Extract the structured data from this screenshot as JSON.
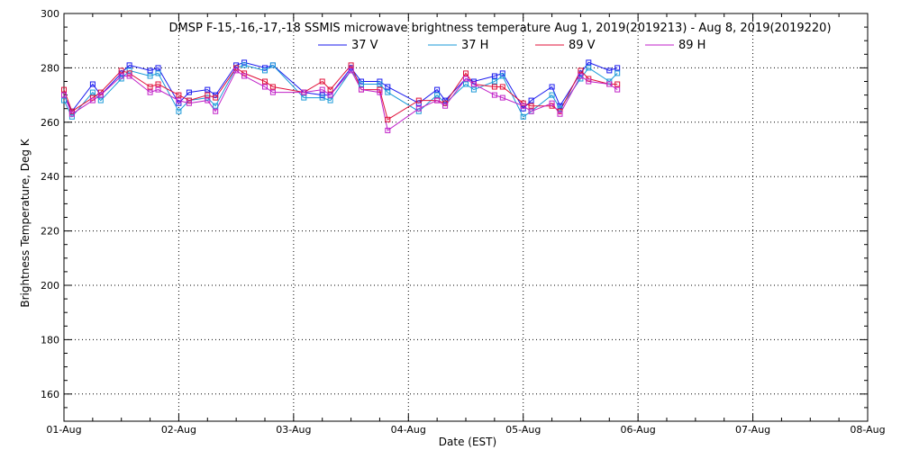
{
  "chart_data": {
    "type": "line",
    "title": "DMSP F-15,-16,-17,-18 SSMIS microwave brightness temperature Aug  1, 2019(2019213) - Aug  8, 2019(2019220)",
    "xlabel": "Date (EST)",
    "ylabel": "Brightness Temperature, Deg K",
    "xlim": [
      0,
      7
    ],
    "ylim": [
      150,
      300
    ],
    "x_ticks": [
      {
        "value": 0,
        "label": "01-Aug"
      },
      {
        "value": 1,
        "label": "02-Aug"
      },
      {
        "value": 2,
        "label": "03-Aug"
      },
      {
        "value": 3,
        "label": "04-Aug"
      },
      {
        "value": 4,
        "label": "05-Aug"
      },
      {
        "value": 5,
        "label": "06-Aug"
      },
      {
        "value": 6,
        "label": "07-Aug"
      },
      {
        "value": 7,
        "label": "08-Aug"
      }
    ],
    "y_ticks": [
      {
        "value": 160,
        "label": "160"
      },
      {
        "value": 180,
        "label": "180"
      },
      {
        "value": 200,
        "label": "200"
      },
      {
        "value": 220,
        "label": "220"
      },
      {
        "value": 240,
        "label": "240"
      },
      {
        "value": 260,
        "label": "260"
      },
      {
        "value": 280,
        "label": "280"
      },
      {
        "value": 300,
        "label": "300"
      }
    ],
    "grid": true,
    "legend_position": "top-center",
    "series": [
      {
        "name": "37 V",
        "color": "#1a1aee",
        "points": [
          [
            0.0,
            270
          ],
          [
            0.07,
            264
          ],
          [
            0.25,
            274
          ],
          [
            0.32,
            270
          ],
          [
            0.5,
            278
          ],
          [
            0.57,
            281
          ],
          [
            0.75,
            279
          ],
          [
            0.82,
            280
          ],
          [
            1.0,
            267
          ],
          [
            1.09,
            271
          ],
          [
            1.25,
            272
          ],
          [
            1.32,
            270
          ],
          [
            1.5,
            281
          ],
          [
            1.57,
            282
          ],
          [
            1.75,
            280
          ],
          [
            1.82,
            281
          ],
          [
            2.09,
            271
          ],
          [
            2.25,
            270
          ],
          [
            2.32,
            270
          ],
          [
            2.5,
            280
          ],
          [
            2.59,
            275
          ],
          [
            2.75,
            275
          ],
          [
            2.82,
            273
          ],
          [
            3.09,
            267
          ],
          [
            3.25,
            272
          ],
          [
            3.32,
            268
          ],
          [
            3.5,
            276
          ],
          [
            3.57,
            275
          ],
          [
            3.75,
            277
          ],
          [
            3.82,
            278
          ],
          [
            4.0,
            265
          ],
          [
            4.07,
            268
          ],
          [
            4.25,
            273
          ],
          [
            4.32,
            266
          ],
          [
            4.5,
            278
          ],
          [
            4.57,
            282
          ],
          [
            4.75,
            279
          ],
          [
            4.82,
            280
          ]
        ]
      },
      {
        "name": "37 H",
        "color": "#1a9ad8",
        "points": [
          [
            0.0,
            268
          ],
          [
            0.07,
            262
          ],
          [
            0.25,
            271
          ],
          [
            0.32,
            268
          ],
          [
            0.5,
            276
          ],
          [
            0.57,
            279
          ],
          [
            0.75,
            277
          ],
          [
            0.82,
            278
          ],
          [
            1.0,
            264
          ],
          [
            1.09,
            268
          ],
          [
            1.25,
            269
          ],
          [
            1.32,
            266
          ],
          [
            1.5,
            280
          ],
          [
            1.57,
            281
          ],
          [
            1.75,
            279
          ],
          [
            1.82,
            281
          ],
          [
            2.09,
            269
          ],
          [
            2.25,
            269
          ],
          [
            2.32,
            268
          ],
          [
            2.5,
            279
          ],
          [
            2.59,
            274
          ],
          [
            2.75,
            274
          ],
          [
            2.82,
            271
          ],
          [
            3.09,
            264
          ],
          [
            3.25,
            270
          ],
          [
            3.32,
            267
          ],
          [
            3.5,
            274
          ],
          [
            3.57,
            272
          ],
          [
            3.75,
            275
          ],
          [
            3.82,
            277
          ],
          [
            4.0,
            262
          ],
          [
            4.07,
            264
          ],
          [
            4.25,
            270
          ],
          [
            4.32,
            265
          ],
          [
            4.5,
            276
          ],
          [
            4.57,
            280
          ],
          [
            4.75,
            275
          ],
          [
            4.82,
            278
          ]
        ]
      },
      {
        "name": "89 V",
        "color": "#e0103a",
        "points": [
          [
            0.0,
            272
          ],
          [
            0.07,
            264
          ],
          [
            0.25,
            269
          ],
          [
            0.32,
            271
          ],
          [
            0.5,
            279
          ],
          [
            0.57,
            278
          ],
          [
            0.75,
            273
          ],
          [
            0.82,
            274
          ],
          [
            1.0,
            270
          ],
          [
            1.09,
            268
          ],
          [
            1.25,
            270
          ],
          [
            1.32,
            269
          ],
          [
            1.5,
            280
          ],
          [
            1.57,
            278
          ],
          [
            1.75,
            275
          ],
          [
            1.82,
            273
          ],
          [
            2.09,
            271
          ],
          [
            2.25,
            275
          ],
          [
            2.32,
            272
          ],
          [
            2.5,
            281
          ],
          [
            2.59,
            272
          ],
          [
            2.75,
            272
          ],
          [
            2.82,
            261
          ],
          [
            3.09,
            268
          ],
          [
            3.25,
            268
          ],
          [
            3.32,
            267
          ],
          [
            3.5,
            278
          ],
          [
            3.57,
            274
          ],
          [
            3.75,
            273
          ],
          [
            3.82,
            273
          ],
          [
            4.0,
            267
          ],
          [
            4.07,
            266
          ],
          [
            4.25,
            266
          ],
          [
            4.32,
            264
          ],
          [
            4.5,
            279
          ],
          [
            4.57,
            276
          ],
          [
            4.75,
            274
          ],
          [
            4.82,
            274
          ]
        ]
      },
      {
        "name": "89 H",
        "color": "#c020c8",
        "points": [
          [
            0.0,
            270
          ],
          [
            0.07,
            263
          ],
          [
            0.25,
            268
          ],
          [
            0.32,
            270
          ],
          [
            0.5,
            277
          ],
          [
            0.57,
            277
          ],
          [
            0.75,
            271
          ],
          [
            0.82,
            272
          ],
          [
            1.0,
            268
          ],
          [
            1.09,
            267
          ],
          [
            1.25,
            268
          ],
          [
            1.32,
            264
          ],
          [
            1.5,
            279
          ],
          [
            1.57,
            277
          ],
          [
            1.75,
            273
          ],
          [
            1.82,
            271
          ],
          [
            2.09,
            271
          ],
          [
            2.25,
            272
          ],
          [
            2.32,
            270
          ],
          [
            2.5,
            279
          ],
          [
            2.59,
            272
          ],
          [
            2.75,
            271
          ],
          [
            2.82,
            257
          ],
          [
            3.09,
            265
          ],
          [
            3.25,
            268
          ],
          [
            3.32,
            266
          ],
          [
            3.5,
            276
          ],
          [
            3.57,
            274
          ],
          [
            3.75,
            270
          ],
          [
            3.82,
            269
          ],
          [
            4.0,
            266
          ],
          [
            4.07,
            264
          ],
          [
            4.25,
            267
          ],
          [
            4.32,
            263
          ],
          [
            4.5,
            277
          ],
          [
            4.57,
            275
          ],
          [
            4.75,
            274
          ],
          [
            4.82,
            272
          ]
        ]
      }
    ]
  }
}
